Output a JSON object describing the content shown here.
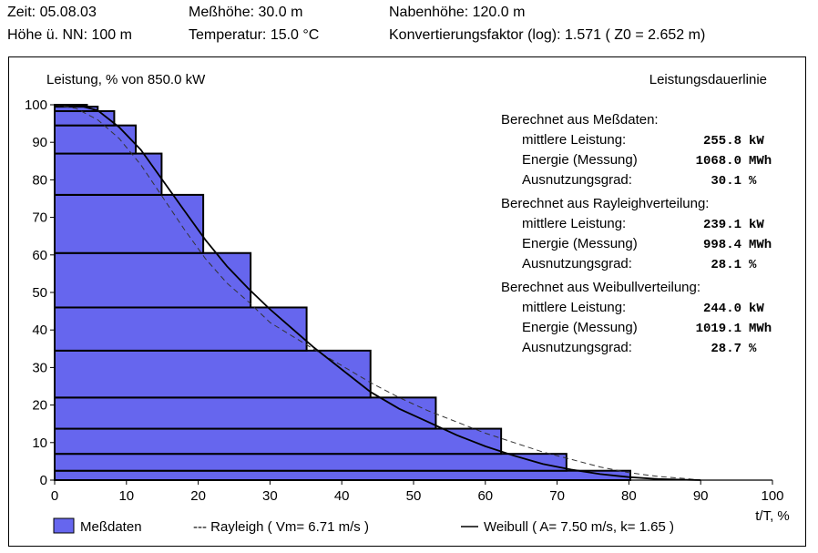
{
  "header": {
    "zeit": "Zeit:  05.08.03",
    "messhoehe": "Meßhöhe: 30.0 m",
    "nabenhoehe": "Nabenhöhe: 120.0 m",
    "hoehe_nn": "Höhe ü. NN:  100 m",
    "temperatur": "Temperatur: 15.0 °C",
    "konvertierung": "Konvertierungsfaktor (log):  1.571 ( Z0 = 2.652 m)"
  },
  "chart_data": {
    "type": "bar",
    "title": "Leistungsdauerlinie",
    "ylabel": "Leistung, % von 850.0 kW",
    "xlabel": "t/T, %",
    "xlim": [
      0,
      100
    ],
    "ylim": [
      0,
      100
    ],
    "xticks": [
      "0",
      "10",
      "20",
      "30",
      "40",
      "50",
      "60",
      "70",
      "80",
      "90",
      "100"
    ],
    "yticks": [
      "0",
      "10",
      "20",
      "30",
      "40",
      "50",
      "60",
      "70",
      "80",
      "90",
      "100"
    ],
    "bars": [
      {
        "y0": 0,
        "y1": 2.5,
        "x": 80.2
      },
      {
        "y0": 2.5,
        "y1": 7,
        "x": 71.3
      },
      {
        "y0": 7,
        "y1": 13.7,
        "x": 62.2
      },
      {
        "y0": 13.7,
        "y1": 22,
        "x": 53.1
      },
      {
        "y0": 22,
        "y1": 34.5,
        "x": 44.0
      },
      {
        "y0": 34.5,
        "y1": 46,
        "x": 35.1
      },
      {
        "y0": 46,
        "y1": 60.5,
        "x": 27.3
      },
      {
        "y0": 60.5,
        "y1": 76,
        "x": 20.7
      },
      {
        "y0": 76,
        "y1": 87,
        "x": 14.9
      },
      {
        "y0": 87,
        "y1": 94.5,
        "x": 11.3
      },
      {
        "y0": 94.5,
        "y1": 98.3,
        "x": 8.3
      },
      {
        "y0": 98.3,
        "y1": 99.5,
        "x": 6.0
      },
      {
        "y0": 99.5,
        "y1": 100,
        "x": 4.5
      }
    ],
    "series": [
      {
        "name": "Rayleigh ( Vm= 6.71 m/s )",
        "style": "dashed",
        "points": [
          [
            0,
            100
          ],
          [
            3,
            99
          ],
          [
            6,
            96
          ],
          [
            9,
            91
          ],
          [
            12,
            84
          ],
          [
            15,
            75.5
          ],
          [
            18,
            67
          ],
          [
            21,
            59
          ],
          [
            24,
            52.5
          ],
          [
            27,
            47.5
          ],
          [
            30,
            42
          ],
          [
            33,
            38.5
          ],
          [
            36,
            35
          ],
          [
            40,
            30.5
          ],
          [
            44,
            26
          ],
          [
            48,
            22
          ],
          [
            52,
            18.5
          ],
          [
            56,
            15.5
          ],
          [
            60,
            12.5
          ],
          [
            64,
            10
          ],
          [
            68,
            7.5
          ],
          [
            72,
            5.5
          ],
          [
            76,
            3.5
          ],
          [
            80,
            2
          ],
          [
            84,
            1
          ],
          [
            88,
            0.4
          ],
          [
            90,
            0
          ]
        ]
      },
      {
        "name": "Weibull ( A= 7.50 m/s, k= 1.65 )",
        "style": "solid",
        "points": [
          [
            0,
            100
          ],
          [
            3,
            100
          ],
          [
            6,
            98.5
          ],
          [
            9,
            94
          ],
          [
            12,
            88
          ],
          [
            15,
            80
          ],
          [
            18,
            72
          ],
          [
            21,
            64
          ],
          [
            24,
            57
          ],
          [
            27,
            51
          ],
          [
            30,
            45.5
          ],
          [
            33,
            40.5
          ],
          [
            36,
            35.5
          ],
          [
            40,
            29.5
          ],
          [
            44,
            23.5
          ],
          [
            48,
            19
          ],
          [
            52,
            15.5
          ],
          [
            56,
            12
          ],
          [
            60,
            9
          ],
          [
            64,
            6.5
          ],
          [
            68,
            4.3
          ],
          [
            72,
            2.8
          ],
          [
            76,
            1.6
          ],
          [
            80,
            0.8
          ],
          [
            84,
            0.3
          ],
          [
            88,
            0.1
          ],
          [
            90,
            0
          ]
        ]
      }
    ],
    "legend": {
      "position": "bottom",
      "bars_label": "Meßdaten",
      "rayleigh_label": "--- Rayleigh ( Vm= 6.71 m/s )",
      "weibull_label": "Weibull ( A= 7.50 m/s, k= 1.65 )"
    },
    "colors": {
      "bar_fill": "#6666ee",
      "bar_edge": "#000000",
      "line": "#000000",
      "dash_line": "#333333"
    },
    "stats": [
      {
        "heading": "Berechnet aus Meßdaten:",
        "rows": [
          {
            "label": "mittlere Leistung:",
            "value": "255.8",
            "unit": "kW"
          },
          {
            "label": "Energie (Messung)",
            "value": "1068.0",
            "unit": "MWh"
          },
          {
            "label": "Ausnutzungsgrad:",
            "value": "30.1",
            "unit": "%"
          }
        ]
      },
      {
        "heading": "Berechnet aus Rayleighverteilung:",
        "rows": [
          {
            "label": "mittlere Leistung:",
            "value": "239.1",
            "unit": "kW"
          },
          {
            "label": "Energie (Messung)",
            "value": "998.4",
            "unit": "MWh"
          },
          {
            "label": "Ausnutzungsgrad:",
            "value": "28.1",
            "unit": "%"
          }
        ]
      },
      {
        "heading": "Berechnet aus Weibullverteilung:",
        "rows": [
          {
            "label": "mittlere Leistung:",
            "value": "244.0",
            "unit": "kW"
          },
          {
            "label": "Energie (Messung)",
            "value": "1019.1",
            "unit": "MWh"
          },
          {
            "label": "Ausnutzungsgrad:",
            "value": "28.7",
            "unit": "%"
          }
        ]
      }
    ]
  }
}
